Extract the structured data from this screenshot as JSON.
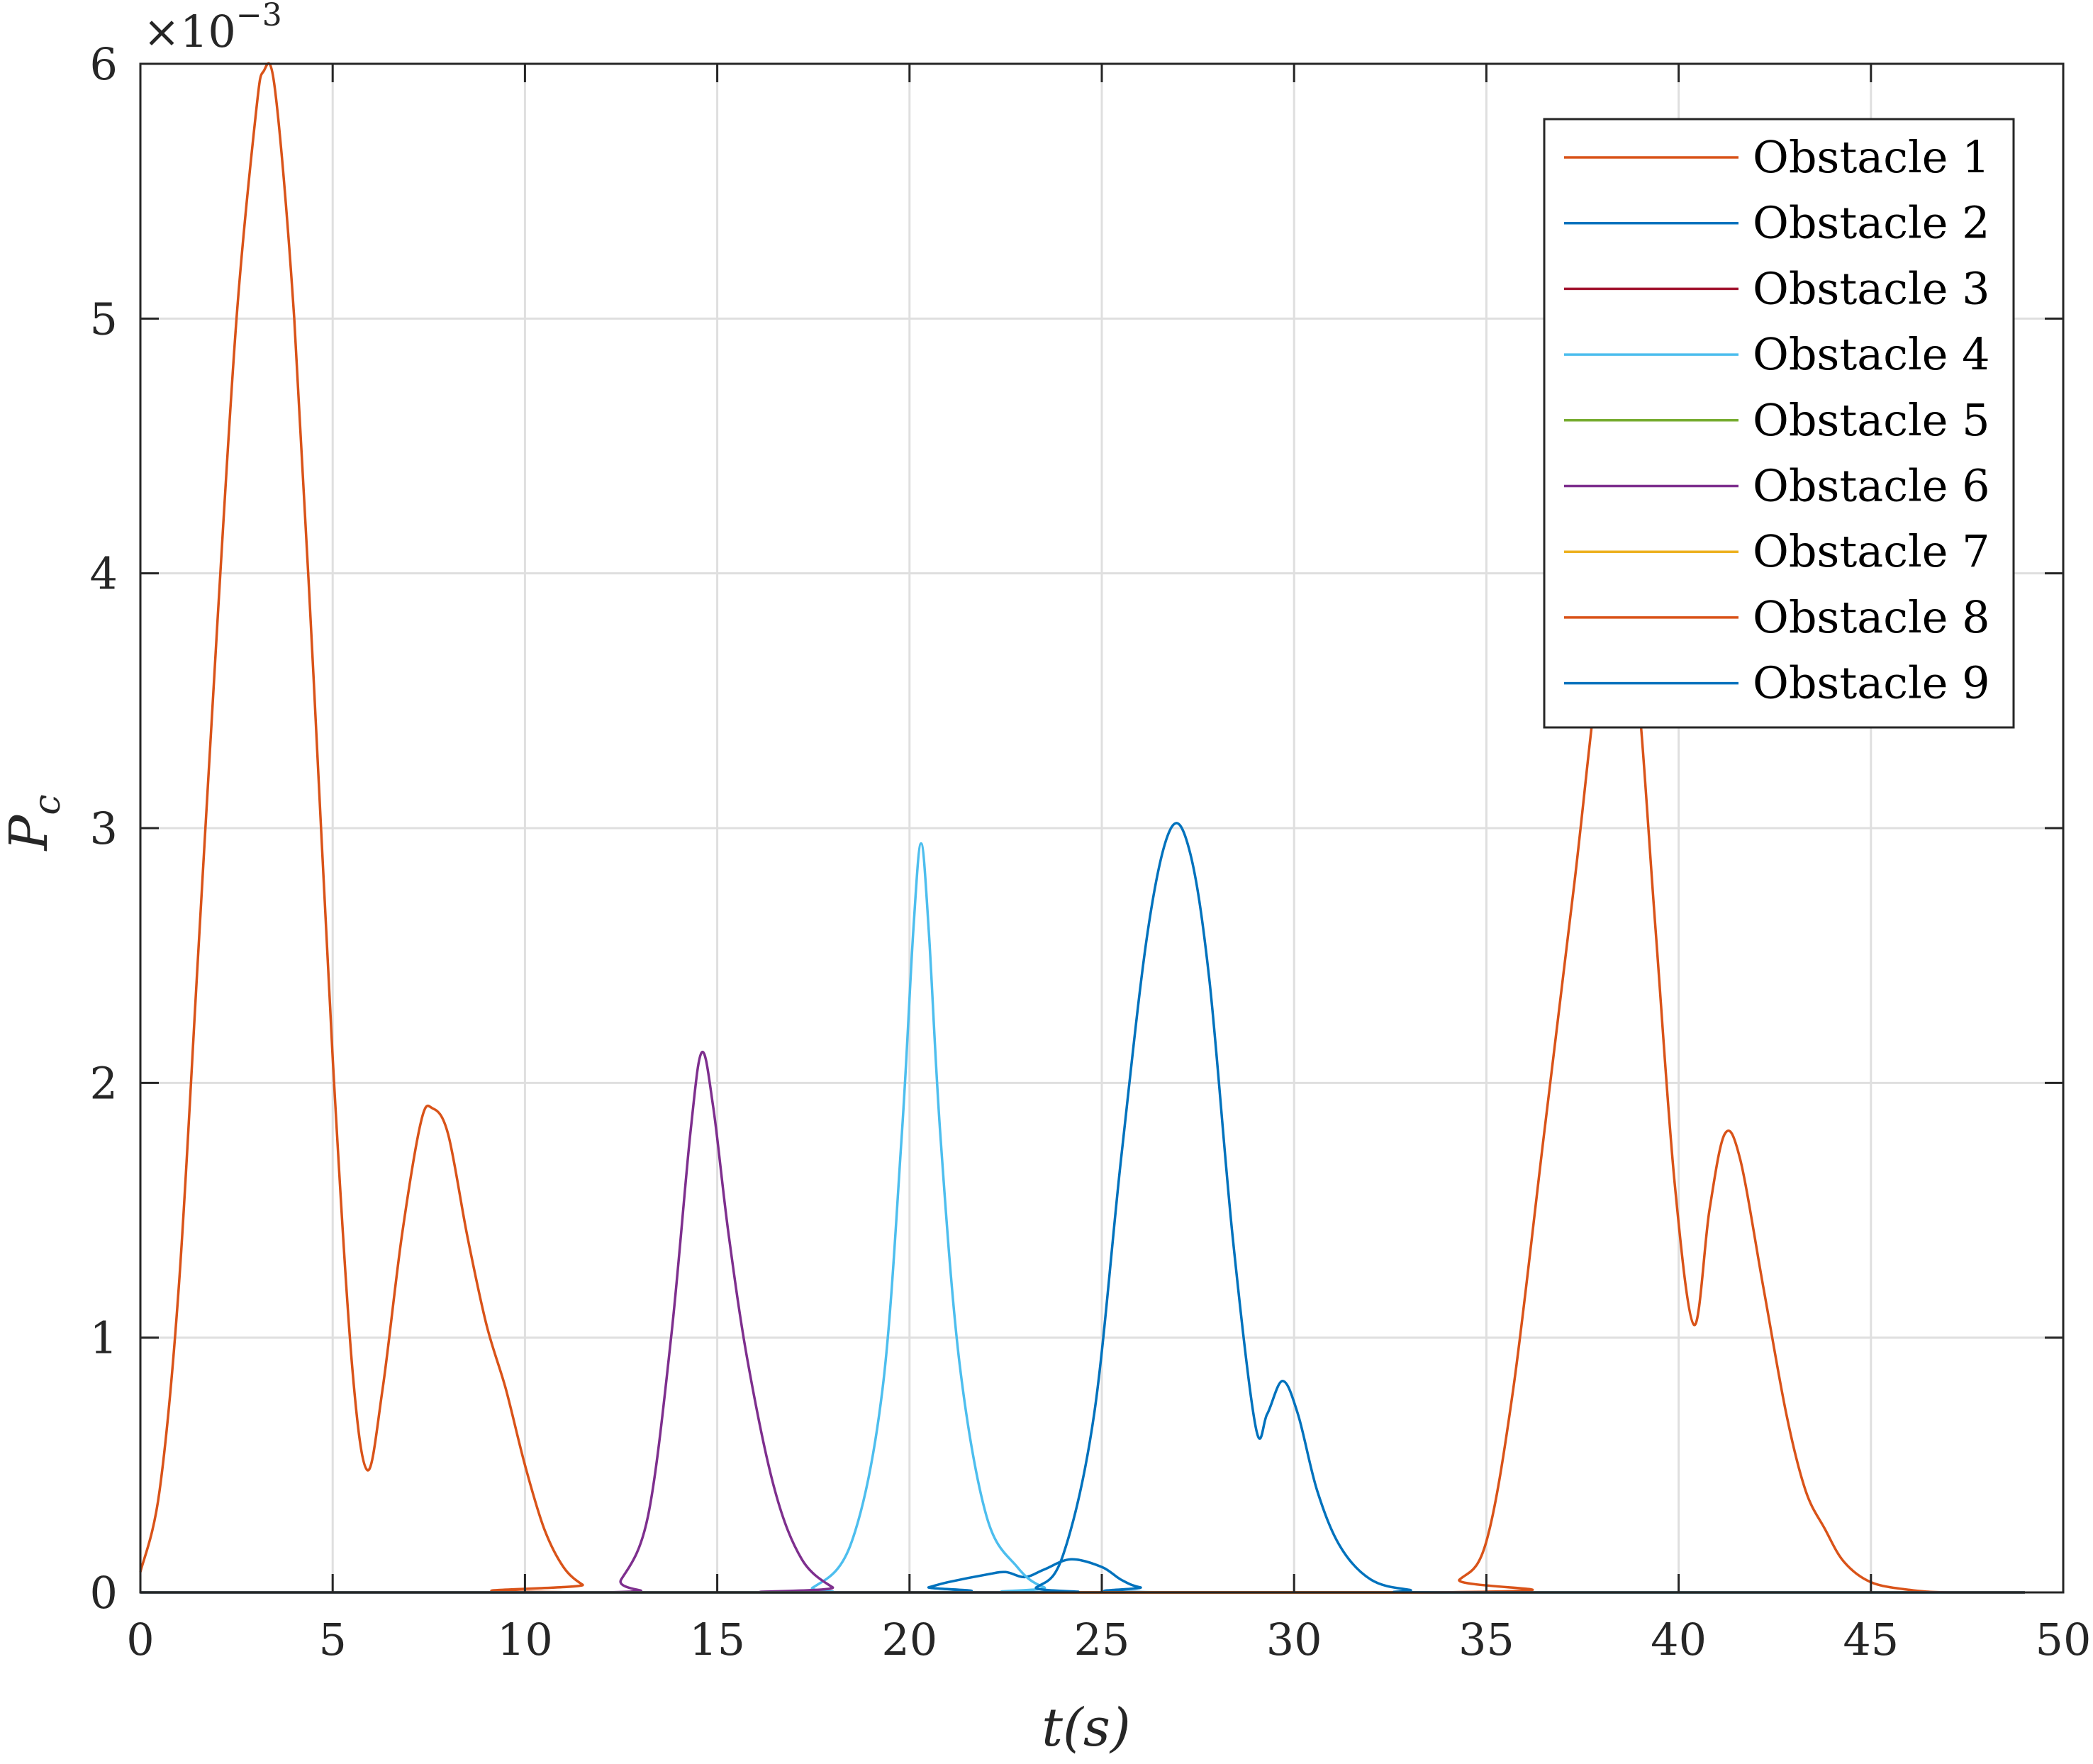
{
  "chart_data": {
    "type": "line",
    "title": "",
    "xlabel": "t(s)",
    "ylabel_main": "P",
    "ylabel_sub": "c",
    "xlim": [
      0,
      50
    ],
    "ylim": [
      0,
      0.006
    ],
    "y_exponent": {
      "base": "×10",
      "power": "−3"
    },
    "x_ticks": [
      {
        "value": 0,
        "label": "0"
      },
      {
        "value": 5,
        "label": "5"
      },
      {
        "value": 10,
        "label": "10"
      },
      {
        "value": 15,
        "label": "15"
      },
      {
        "value": 20,
        "label": "20"
      },
      {
        "value": 25,
        "label": "25"
      },
      {
        "value": 30,
        "label": "30"
      },
      {
        "value": 35,
        "label": "35"
      },
      {
        "value": 40,
        "label": "40"
      },
      {
        "value": 45,
        "label": "45"
      },
      {
        "value": 50,
        "label": "50"
      }
    ],
    "y_ticks": [
      {
        "value": 0,
        "label": "0"
      },
      {
        "value": 0.001,
        "label": "1"
      },
      {
        "value": 0.002,
        "label": "2"
      },
      {
        "value": 0.003,
        "label": "3"
      },
      {
        "value": 0.004,
        "label": "4"
      },
      {
        "value": 0.005,
        "label": "5"
      },
      {
        "value": 0.006,
        "label": "6"
      }
    ],
    "grid": true,
    "legend_position": "top-right",
    "series": [
      {
        "name": "Obstacle 1",
        "color": "#D95319",
        "points": [
          [
            0,
            8e-05
          ],
          [
            0.5,
            0.0004
          ],
          [
            1,
            0.0012
          ],
          [
            1.5,
            0.0025
          ],
          [
            2,
            0.0038
          ],
          [
            2.5,
            0.005
          ],
          [
            3,
            0.0058
          ],
          [
            3.2,
            0.00597
          ],
          [
            3.5,
            0.0059
          ],
          [
            4,
            0.005
          ],
          [
            4.5,
            0.0036
          ],
          [
            5,
            0.0021
          ],
          [
            5.5,
            0.0009
          ],
          [
            5.9,
            0.00048
          ],
          [
            6.3,
            0.0008
          ],
          [
            6.8,
            0.0014
          ],
          [
            7.3,
            0.00185
          ],
          [
            7.6,
            0.0019
          ],
          [
            8,
            0.0018
          ],
          [
            8.5,
            0.0014
          ],
          [
            9,
            0.00105
          ],
          [
            9.5,
            0.0008
          ],
          [
            10,
            0.0005
          ],
          [
            10.5,
            0.00025
          ],
          [
            11,
            0.0001
          ],
          [
            11.5,
            3e-05
          ],
          [
            12,
            0.0
          ],
          [
            49,
            0.0
          ]
        ]
      },
      {
        "name": "Obstacle 2",
        "color": "#0072BD",
        "points": [
          [
            0,
            0
          ],
          [
            20,
            0
          ],
          [
            20.5,
            2e-05
          ],
          [
            21,
            4e-05
          ],
          [
            22,
            7e-05
          ],
          [
            22.5,
            8e-05
          ],
          [
            23,
            6e-05
          ],
          [
            23.5,
            9e-05
          ],
          [
            24.2,
            0.00013
          ],
          [
            25,
            0.0001
          ],
          [
            25.5,
            5e-05
          ],
          [
            26,
            2e-05
          ],
          [
            27,
            0.0
          ],
          [
            49,
            0.0
          ]
        ]
      },
      {
        "name": "Obstacle 3",
        "color": "#A2142F",
        "points": [
          [
            0,
            0
          ],
          [
            49,
            0
          ]
        ]
      },
      {
        "name": "Obstacle 4",
        "color": "#4DBEEE",
        "points": [
          [
            0,
            0
          ],
          [
            16.5,
            0
          ],
          [
            17.5,
            2e-05
          ],
          [
            18.5,
            0.0002
          ],
          [
            19.3,
            0.0008
          ],
          [
            19.8,
            0.0018
          ],
          [
            20.1,
            0.0026
          ],
          [
            20.3,
            0.00294
          ],
          [
            20.5,
            0.0026
          ],
          [
            20.8,
            0.0018
          ],
          [
            21.3,
            0.0009
          ],
          [
            22,
            0.0003
          ],
          [
            22.8,
            0.0001
          ],
          [
            23.5,
            2e-05
          ],
          [
            24.5,
            0.0
          ],
          [
            49,
            0.0
          ]
        ]
      },
      {
        "name": "Obstacle 5",
        "color": "#77AC30",
        "points": [
          [
            0,
            0
          ],
          [
            49,
            0
          ]
        ]
      },
      {
        "name": "Obstacle 6",
        "color": "#7E2F8E",
        "points": [
          [
            0,
            0
          ],
          [
            12,
            0
          ],
          [
            12.5,
            5e-05
          ],
          [
            13.2,
            0.0003
          ],
          [
            13.8,
            0.001
          ],
          [
            14.3,
            0.0018
          ],
          [
            14.6,
            0.00212
          ],
          [
            14.9,
            0.0019
          ],
          [
            15.3,
            0.0014
          ],
          [
            15.8,
            0.0009
          ],
          [
            16.5,
            0.0004
          ],
          [
            17.2,
            0.00013
          ],
          [
            18,
            2e-05
          ],
          [
            18.5,
            0.0
          ],
          [
            49,
            0.0
          ]
        ]
      },
      {
        "name": "Obstacle 7",
        "color": "#EDB120",
        "points": [
          [
            0,
            0
          ],
          [
            49,
            0
          ]
        ]
      },
      {
        "name": "Obstacle 8",
        "color": "#D95319",
        "points": [
          [
            0,
            0
          ],
          [
            33.5,
            0
          ],
          [
            34.3,
            5e-05
          ],
          [
            35,
            0.0002
          ],
          [
            35.7,
            0.0008
          ],
          [
            36.5,
            0.0018
          ],
          [
            37.3,
            0.0028
          ],
          [
            37.9,
            0.0036
          ],
          [
            38.4,
            0.004
          ],
          [
            38.9,
            0.0036
          ],
          [
            39.4,
            0.0026
          ],
          [
            39.9,
            0.0016
          ],
          [
            40.4,
            0.00105
          ],
          [
            40.8,
            0.0015
          ],
          [
            41.2,
            0.0018
          ],
          [
            41.6,
            0.0017
          ],
          [
            42.2,
            0.0012
          ],
          [
            42.8,
            0.0007
          ],
          [
            43.3,
            0.0004
          ],
          [
            43.8,
            0.00025
          ],
          [
            44.3,
            0.00012
          ],
          [
            45,
            4e-05
          ],
          [
            46,
            1e-05
          ],
          [
            47,
            0.0
          ],
          [
            49,
            0.0
          ]
        ]
      },
      {
        "name": "Obstacle 9",
        "color": "#0072BD",
        "points": [
          [
            0,
            0
          ],
          [
            22.5,
            0
          ],
          [
            23.3,
            2e-05
          ],
          [
            24,
            0.00015
          ],
          [
            24.8,
            0.0007
          ],
          [
            25.5,
            0.0017
          ],
          [
            26.2,
            0.0026
          ],
          [
            26.8,
            0.003
          ],
          [
            27.3,
            0.0029
          ],
          [
            27.8,
            0.0024
          ],
          [
            28.4,
            0.0014
          ],
          [
            29,
            0.00065
          ],
          [
            29.3,
            0.0007
          ],
          [
            29.7,
            0.00083
          ],
          [
            30.1,
            0.0007
          ],
          [
            30.6,
            0.0004
          ],
          [
            31.2,
            0.00018
          ],
          [
            32,
            5e-05
          ],
          [
            33,
            1e-05
          ],
          [
            34,
            0.0
          ],
          [
            49,
            0.0
          ]
        ]
      }
    ]
  }
}
